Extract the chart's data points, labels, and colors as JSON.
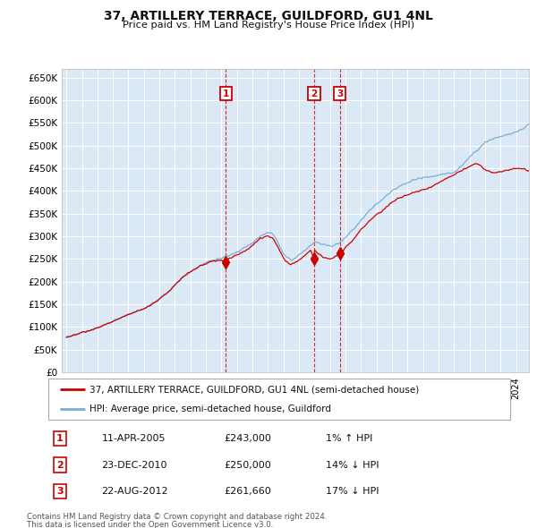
{
  "title": "37, ARTILLERY TERRACE, GUILDFORD, GU1 4NL",
  "subtitle": "Price paid vs. HM Land Registry's House Price Index (HPI)",
  "legend_line1": "37, ARTILLERY TERRACE, GUILDFORD, GU1 4NL (semi-detached house)",
  "legend_line2": "HPI: Average price, semi-detached house, Guildford",
  "footer1": "Contains HM Land Registry data © Crown copyright and database right 2024.",
  "footer2": "This data is licensed under the Open Government Licence v3.0.",
  "red_color": "#cc0000",
  "blue_color": "#7dadd4",
  "bg_color": "#dbe8f5",
  "grid_color": "#ffffff",
  "outer_bg": "#ffffff",
  "transactions": [
    {
      "num": 1,
      "date": "11-APR-2005",
      "price": "£243,000",
      "pct": "1% ↑ HPI"
    },
    {
      "num": 2,
      "date": "23-DEC-2010",
      "price": "£250,000",
      "pct": "14% ↓ HPI"
    },
    {
      "num": 3,
      "date": "22-AUG-2012",
      "price": "£261,660",
      "pct": "17% ↓ HPI"
    }
  ],
  "transaction_dates_decimal": [
    2005.274,
    2010.978,
    2012.644
  ],
  "transaction_prices": [
    243000,
    250000,
    261660
  ],
  "ylim": [
    0,
    670000
  ],
  "yticks": [
    0,
    50000,
    100000,
    150000,
    200000,
    250000,
    300000,
    350000,
    400000,
    450000,
    500000,
    550000,
    600000,
    650000
  ],
  "xlim_start": 1994.7,
  "xlim_end": 2024.83,
  "hpi_waypoints_t": [
    1995.0,
    1995.5,
    1996.0,
    1996.5,
    1997.0,
    1997.5,
    1998.0,
    1998.5,
    1999.0,
    1999.5,
    2000.0,
    2000.5,
    2001.0,
    2001.5,
    2002.0,
    2002.5,
    2003.0,
    2003.5,
    2004.0,
    2004.5,
    2005.0,
    2005.5,
    2006.0,
    2006.5,
    2007.0,
    2007.5,
    2008.0,
    2008.25,
    2008.5,
    2008.75,
    2009.0,
    2009.25,
    2009.5,
    2009.75,
    2010.0,
    2010.25,
    2010.5,
    2010.75,
    2011.0,
    2011.25,
    2011.5,
    2011.75,
    2012.0,
    2012.25,
    2012.5,
    2012.75,
    2013.0,
    2013.5,
    2014.0,
    2014.5,
    2015.0,
    2015.5,
    2016.0,
    2016.5,
    2017.0,
    2017.5,
    2018.0,
    2018.5,
    2019.0,
    2019.5,
    2020.0,
    2020.5,
    2021.0,
    2021.5,
    2022.0,
    2022.5,
    2023.0,
    2023.5,
    2024.0,
    2024.5,
    2024.83
  ],
  "hpi_waypoints_v": [
    78000,
    82000,
    88000,
    92000,
    98000,
    105000,
    112000,
    120000,
    128000,
    133000,
    140000,
    150000,
    162000,
    175000,
    192000,
    210000,
    222000,
    232000,
    242000,
    248000,
    252000,
    258000,
    265000,
    275000,
    285000,
    300000,
    308000,
    305000,
    295000,
    278000,
    262000,
    252000,
    248000,
    252000,
    258000,
    265000,
    272000,
    280000,
    288000,
    285000,
    282000,
    280000,
    278000,
    280000,
    283000,
    290000,
    298000,
    315000,
    335000,
    355000,
    372000,
    385000,
    400000,
    410000,
    418000,
    425000,
    430000,
    432000,
    435000,
    438000,
    440000,
    455000,
    475000,
    490000,
    508000,
    515000,
    520000,
    525000,
    530000,
    538000,
    548000
  ],
  "red_waypoints_t": [
    1995.0,
    1995.5,
    1996.0,
    1996.5,
    1997.0,
    1997.5,
    1998.0,
    1998.5,
    1999.0,
    1999.5,
    2000.0,
    2000.5,
    2001.0,
    2001.5,
    2002.0,
    2002.5,
    2003.0,
    2003.5,
    2004.0,
    2004.5,
    2005.0,
    2005.274,
    2005.5,
    2006.0,
    2006.5,
    2007.0,
    2007.5,
    2008.0,
    2008.25,
    2008.5,
    2008.75,
    2009.0,
    2009.25,
    2009.5,
    2009.75,
    2010.0,
    2010.25,
    2010.5,
    2010.75,
    2010.978,
    2011.0,
    2011.25,
    2011.5,
    2011.75,
    2012.0,
    2012.25,
    2012.5,
    2012.644,
    2012.75,
    2013.0,
    2013.5,
    2014.0,
    2014.5,
    2015.0,
    2015.5,
    2016.0,
    2016.5,
    2017.0,
    2017.5,
    2018.0,
    2018.5,
    2019.0,
    2019.5,
    2020.0,
    2020.5,
    2021.0,
    2021.5,
    2022.0,
    2022.5,
    2023.0,
    2023.5,
    2024.0,
    2024.5,
    2024.83
  ],
  "red_waypoints_v": [
    78000,
    82000,
    88000,
    92000,
    98000,
    105000,
    112000,
    120000,
    128000,
    133000,
    140000,
    150000,
    162000,
    175000,
    192000,
    210000,
    222000,
    232000,
    240000,
    245000,
    248000,
    243000,
    250000,
    258000,
    268000,
    280000,
    295000,
    302000,
    298000,
    285000,
    268000,
    252000,
    242000,
    238000,
    242000,
    248000,
    255000,
    262000,
    270000,
    250000,
    268000,
    262000,
    255000,
    252000,
    250000,
    255000,
    260000,
    261660,
    265000,
    275000,
    292000,
    315000,
    332000,
    348000,
    360000,
    375000,
    385000,
    392000,
    398000,
    402000,
    408000,
    418000,
    428000,
    435000,
    445000,
    455000,
    462000,
    448000,
    440000,
    443000,
    446000,
    450000,
    448000,
    445000
  ]
}
